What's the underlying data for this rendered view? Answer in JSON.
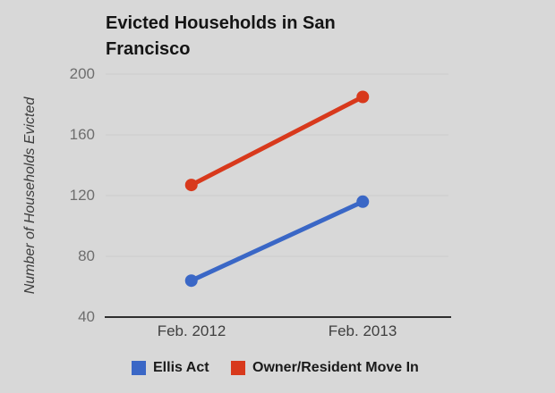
{
  "colors": {
    "background": "#d8d8d8",
    "grid": "#cbcbcb",
    "axis_line": "#2e2e2e",
    "tick_text": "#6e6e6e",
    "category_text": "#3f3f3f"
  },
  "chart_data": {
    "type": "line",
    "title": "Evicted Households in San Francisco",
    "xlabel": "",
    "ylabel": "Number of Households Evicted",
    "categories": [
      "Feb. 2012",
      "Feb. 2013"
    ],
    "series": [
      {
        "name": "Ellis Act",
        "color": "#3a67c6",
        "values": [
          64,
          116
        ]
      },
      {
        "name": "Owner/Resident Move In",
        "color": "#d8391c",
        "values": [
          127,
          185
        ]
      }
    ],
    "ylim": [
      40,
      200
    ],
    "yticks": [
      200,
      160,
      120,
      80,
      40
    ],
    "grid": true,
    "legend_position": "bottom"
  }
}
